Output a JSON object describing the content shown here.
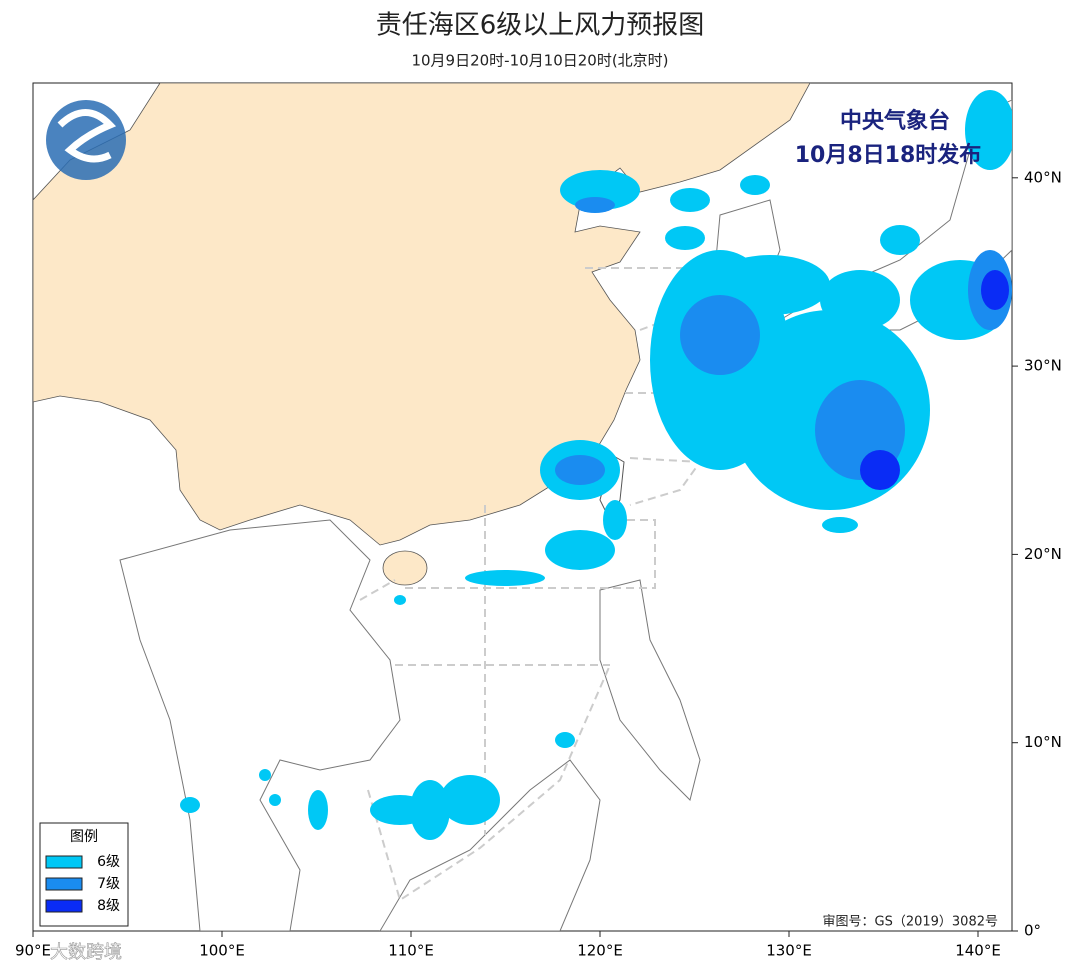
{
  "header": {
    "title": "责任海区6级以上风力预报图",
    "subtitle": "10月9日20时-10月10日20时(北京时)"
  },
  "issuer": {
    "agency": "中央气象台",
    "issued": "10月8日18时发布"
  },
  "legend": {
    "title": "图例",
    "items": [
      {
        "label": "6级",
        "color": "#00c8f5"
      },
      {
        "label": "7级",
        "color": "#1a8cf0"
      },
      {
        "label": "8级",
        "color": "#0a2cf5"
      }
    ]
  },
  "map": {
    "lon_ticks": [
      {
        "value": 90,
        "label": "90°E"
      },
      {
        "value": 100,
        "label": "100°E"
      },
      {
        "value": 110,
        "label": "110°E"
      },
      {
        "value": 120,
        "label": "120°E"
      },
      {
        "value": 130,
        "label": "130°E"
      },
      {
        "value": 140,
        "label": "140°E"
      }
    ],
    "lat_ticks": [
      {
        "value": 0,
        "label": "0°"
      },
      {
        "value": 10,
        "label": "10°N"
      },
      {
        "value": 20,
        "label": "20°N"
      },
      {
        "value": 30,
        "label": "30°N"
      },
      {
        "value": 40,
        "label": "40°N"
      }
    ]
  },
  "footer": {
    "review_number": "审图号：GS（2019）3082号",
    "watermark": "大数跨境"
  }
}
